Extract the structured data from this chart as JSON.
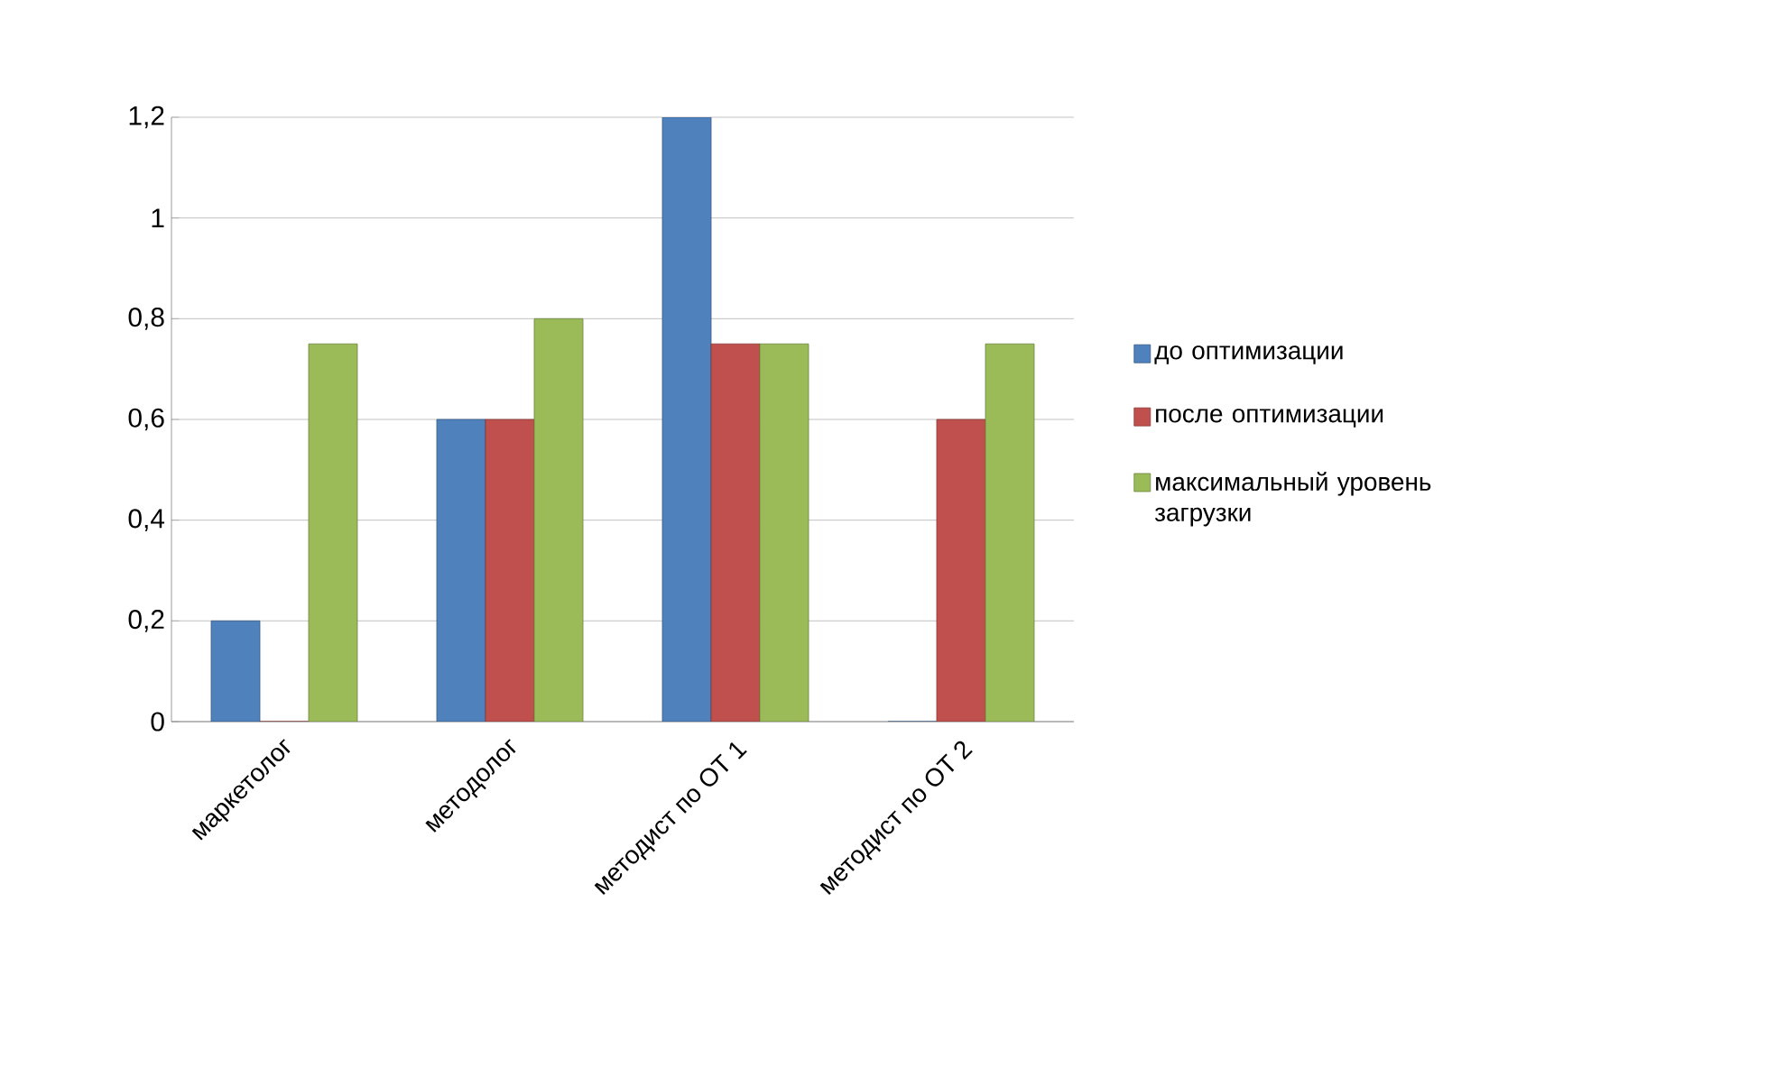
{
  "chart_data": {
    "type": "bar",
    "categories": [
      "маркетолог",
      "методолог",
      "методист по ОТ 1",
      "методист по ОТ 2"
    ],
    "series": [
      {
        "name": "до оптимизации",
        "color": "#4f81bd",
        "values": [
          0.2,
          0.6,
          1.2,
          0
        ]
      },
      {
        "name": "после оптимизации",
        "color": "#c0504d",
        "values": [
          0,
          0.6,
          0.75,
          0.6
        ]
      },
      {
        "name": "максимальный уровень загрузки",
        "color": "#9bbb59",
        "values": [
          0.75,
          0.8,
          0.75,
          0.75
        ]
      }
    ],
    "ylim": [
      0,
      1.2
    ],
    "yticks": [
      {
        "value": 0,
        "label": "0"
      },
      {
        "value": 0.2,
        "label": "0,2"
      },
      {
        "value": 0.4,
        "label": "0,4"
      },
      {
        "value": 0.6,
        "label": "0,6"
      },
      {
        "value": 0.8,
        "label": "0,8"
      },
      {
        "value": 1,
        "label": "1"
      },
      {
        "value": 1.2,
        "label": "1,2"
      }
    ],
    "grid": "y",
    "legend": "right"
  }
}
